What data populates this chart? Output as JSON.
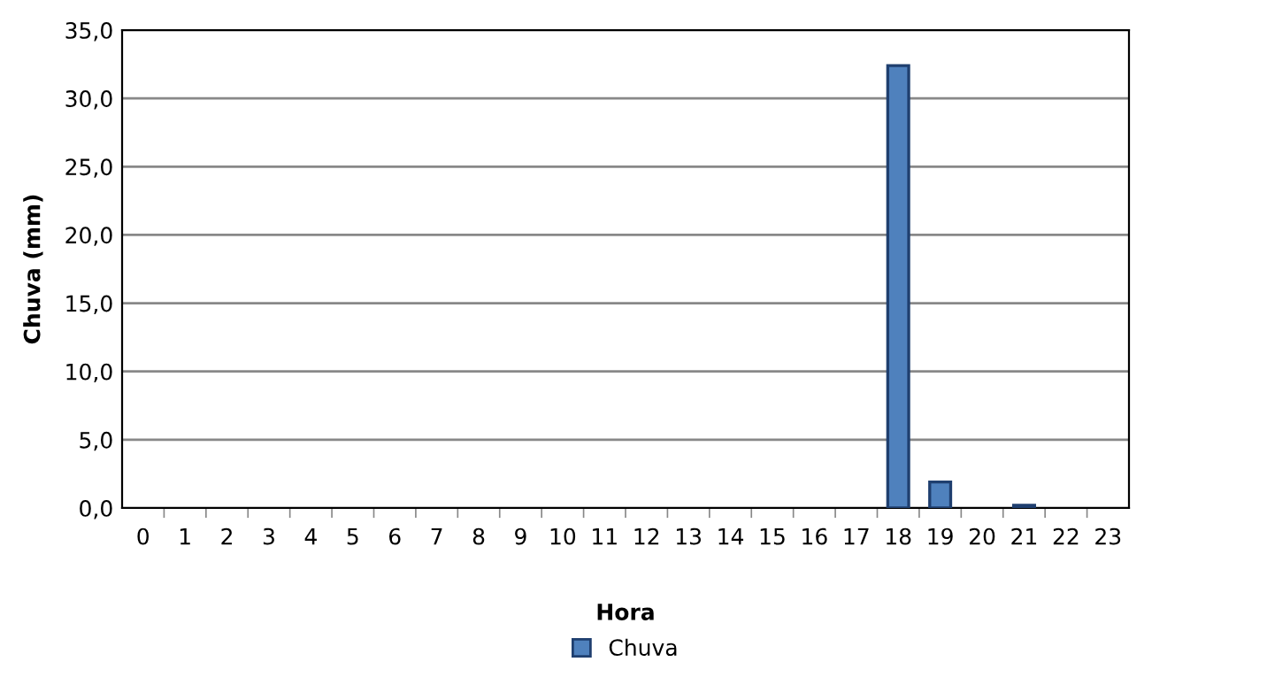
{
  "chart_data": {
    "type": "bar",
    "xlabel": "Hora",
    "ylabel": "Chuva (mm)",
    "categories": [
      "0",
      "1",
      "2",
      "3",
      "4",
      "5",
      "6",
      "7",
      "8",
      "9",
      "10",
      "11",
      "12",
      "13",
      "14",
      "15",
      "16",
      "17",
      "18",
      "19",
      "20",
      "21",
      "22",
      "23"
    ],
    "series": [
      {
        "name": "Chuva",
        "color": "#4f81bd",
        "values": [
          0,
          0,
          0,
          0,
          0,
          0,
          0,
          0,
          0,
          0,
          0,
          0,
          0,
          0,
          0,
          0,
          0,
          0,
          32.4,
          1.9,
          0,
          0.2,
          0,
          0
        ]
      }
    ],
    "ylim": [
      0,
      35
    ],
    "yticks": [
      {
        "value": 0,
        "label": "0,0"
      },
      {
        "value": 5,
        "label": "5,0"
      },
      {
        "value": 10,
        "label": "10,0"
      },
      {
        "value": 15,
        "label": "15,0"
      },
      {
        "value": 20,
        "label": "20,0"
      },
      {
        "value": 25,
        "label": "25,0"
      },
      {
        "value": 30,
        "label": "30,0"
      },
      {
        "value": 35,
        "label": "35,0"
      }
    ],
    "grid": "y",
    "legend": "bottom"
  }
}
